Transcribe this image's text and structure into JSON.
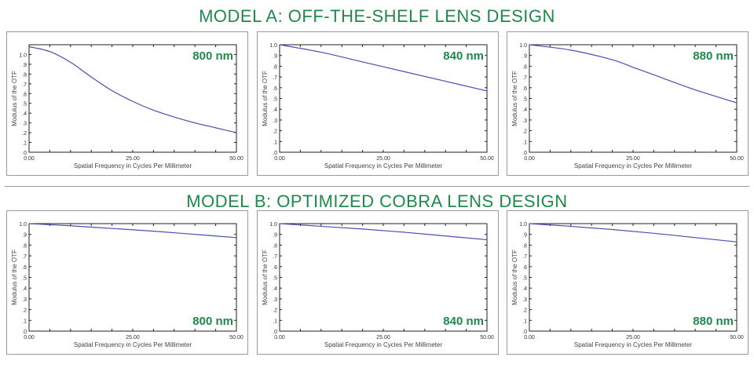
{
  "titles": {
    "model_a": "MODEL A: OFF-THE-SHELF LENS DESIGN",
    "model_b": "MODEL B: OPTIMIZED COBRA LENS DESIGN"
  },
  "colors": {
    "accent": "#1e8a4a",
    "curve": "#4a4fb0"
  },
  "chart_data": [
    {
      "type": "line",
      "group": "Model A",
      "label": "800 nm",
      "xlabel": "Spatial Frequency in Cycles Per Millimeter",
      "ylabel": "Modulus of the OTF",
      "xlim": [
        0,
        50
      ],
      "ylim": [
        0,
        1.1
      ],
      "xticks": [
        "0.00",
        "25.00",
        "50.00"
      ],
      "yticks": [
        ".0",
        ".1",
        ".2",
        ".3",
        ".4",
        ".5",
        ".6",
        ".7",
        ".8",
        ".9",
        "1.0"
      ],
      "x": [
        0,
        5,
        10,
        15,
        20,
        25,
        30,
        35,
        40,
        45,
        50
      ],
      "y": [
        1.08,
        1.03,
        0.92,
        0.77,
        0.63,
        0.52,
        0.43,
        0.36,
        0.3,
        0.25,
        0.2
      ]
    },
    {
      "type": "line",
      "group": "Model A",
      "label": "840 nm",
      "xlabel": "Spatial Frequency in Cycles Per Millimeter",
      "ylabel": "Modulus of the OTF",
      "xlim": [
        0,
        50
      ],
      "ylim": [
        0,
        1.0
      ],
      "xticks": [
        "0.00",
        "25.00",
        "50.00"
      ],
      "yticks": [
        ".0",
        ".1",
        ".2",
        ".3",
        ".4",
        ".5",
        ".6",
        ".7",
        ".8",
        ".9",
        "1.0"
      ],
      "x": [
        0,
        10,
        20,
        30,
        40,
        50
      ],
      "y": [
        1.0,
        0.93,
        0.84,
        0.75,
        0.66,
        0.57
      ]
    },
    {
      "type": "line",
      "group": "Model A",
      "label": "880 nm",
      "xlabel": "Spatial Frequency in Cycles Per Millimeter",
      "ylabel": "Modulus of the OTF",
      "xlim": [
        0,
        50
      ],
      "ylim": [
        0,
        1.0
      ],
      "xticks": [
        "0.00",
        "25.00",
        "50.00"
      ],
      "yticks": [
        ".0",
        ".1",
        ".2",
        ".3",
        ".4",
        ".5",
        ".6",
        ".7",
        ".8",
        ".9",
        "1.0"
      ],
      "x": [
        0,
        10,
        20,
        25,
        30,
        40,
        50
      ],
      "y": [
        1.0,
        0.95,
        0.86,
        0.79,
        0.72,
        0.58,
        0.46
      ]
    },
    {
      "type": "line",
      "group": "Model B",
      "label": "800 nm",
      "xlabel": "Spatial Frequency in Cycles Per Millimeter",
      "ylabel": "Modulus of the OTF",
      "xlim": [
        0,
        50
      ],
      "ylim": [
        0,
        1.0
      ],
      "xticks": [
        "0.00",
        "25.00",
        "50.00"
      ],
      "yticks": [
        ".0",
        ".1",
        ".2",
        ".3",
        ".4",
        ".5",
        ".6",
        ".7",
        ".8",
        ".9",
        "1.0"
      ],
      "x": [
        0,
        10,
        20,
        30,
        40,
        50
      ],
      "y": [
        1.0,
        0.98,
        0.955,
        0.93,
        0.9,
        0.87
      ]
    },
    {
      "type": "line",
      "group": "Model B",
      "label": "840 nm",
      "xlabel": "Spatial Frequency in Cycles Per Millimeter",
      "ylabel": "Modulus of the OTF",
      "xlim": [
        0,
        50
      ],
      "ylim": [
        0,
        1.0
      ],
      "xticks": [
        "0.00",
        "25.00",
        "50.00"
      ],
      "yticks": [
        ".0",
        ".1",
        ".2",
        ".3",
        ".4",
        ".5",
        ".6",
        ".7",
        ".8",
        ".9",
        "1.0"
      ],
      "x": [
        0,
        10,
        20,
        30,
        40,
        50
      ],
      "y": [
        1.0,
        0.975,
        0.95,
        0.92,
        0.885,
        0.85
      ]
    },
    {
      "type": "line",
      "group": "Model B",
      "label": "880 nm",
      "xlabel": "Spatial Frequency in Cycles Per Millimeter",
      "ylabel": "Modulus of the OTF",
      "xlim": [
        0,
        50
      ],
      "ylim": [
        0,
        1.0
      ],
      "xticks": [
        "0.00",
        "25.00",
        "50.00"
      ],
      "yticks": [
        ".0",
        ".1",
        ".2",
        ".3",
        ".4",
        ".5",
        ".6",
        ".7",
        ".8",
        ".9",
        "1.0"
      ],
      "x": [
        0,
        10,
        20,
        30,
        40,
        50
      ],
      "y": [
        1.0,
        0.975,
        0.945,
        0.91,
        0.87,
        0.83
      ]
    }
  ]
}
